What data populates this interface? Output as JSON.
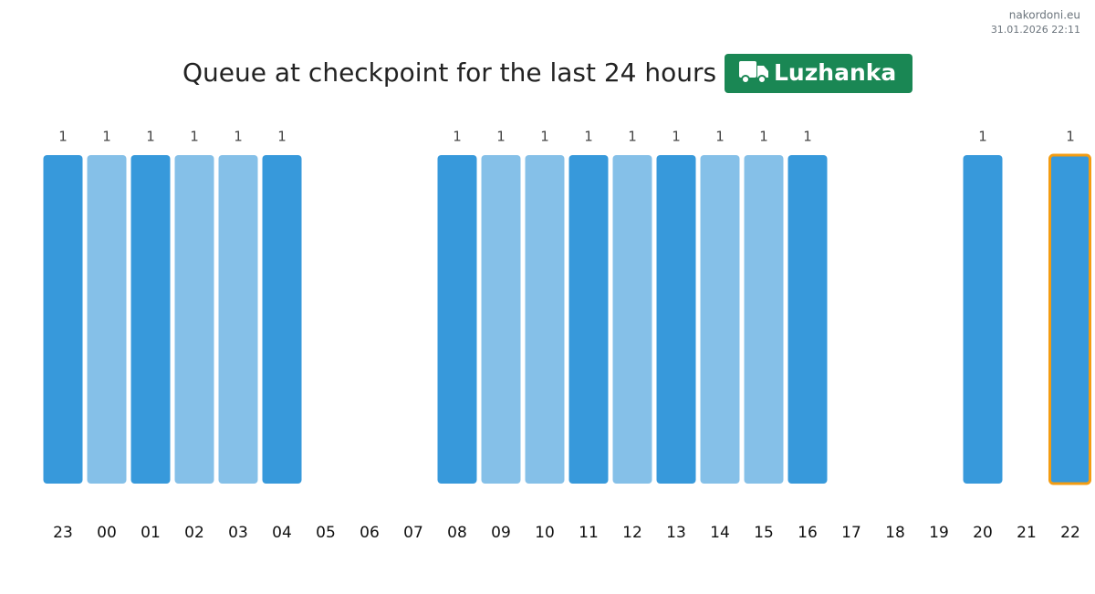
{
  "header": {
    "site": "nakordoni.eu",
    "timestamp": "31.01.2026 22:11"
  },
  "chart_data": {
    "type": "bar",
    "title": "Queue at checkpoint for the last 24 hours",
    "badge": "Luzhanka",
    "categories": [
      "23",
      "00",
      "01",
      "02",
      "03",
      "04",
      "05",
      "06",
      "07",
      "08",
      "09",
      "10",
      "11",
      "12",
      "13",
      "14",
      "15",
      "16",
      "17",
      "18",
      "19",
      "20",
      "21",
      "22"
    ],
    "values": [
      1,
      1,
      1,
      1,
      1,
      1,
      null,
      null,
      null,
      1,
      1,
      1,
      1,
      1,
      1,
      1,
      1,
      1,
      null,
      null,
      null,
      1,
      null,
      1
    ],
    "colors": [
      "#3799db",
      "#85c0e8",
      "#3799db",
      "#85c0e8",
      "#85c0e8",
      "#3799db",
      null,
      null,
      null,
      "#3799db",
      "#85c0e8",
      "#85c0e8",
      "#3799db",
      "#85c0e8",
      "#3799db",
      "#85c0e8",
      "#85c0e8",
      "#3799db",
      null,
      null,
      null,
      "#3799db",
      null,
      "#3799db"
    ],
    "highlight": {
      "index": 23,
      "color": "#f39c12"
    },
    "badge_color": "#1a8754"
  }
}
